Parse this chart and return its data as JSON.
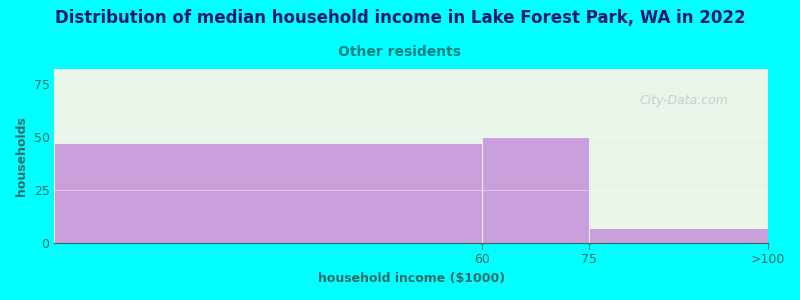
{
  "title": "Distribution of median household income in Lake Forest Park, WA in 2022",
  "subtitle": "Other residents",
  "xlabel": "household income ($1000)",
  "ylabel": "households",
  "bar_labels": [
    "60",
    "75",
    ">100"
  ],
  "bar_values": [
    47,
    50,
    7
  ],
  "bar_color": "#c9a0dc",
  "bar_edge_color": "#c9a0dc",
  "bg_color": "#00ffff",
  "plot_bg_color": "#eaf5ea",
  "title_color": "#1a1a6e",
  "subtitle_color": "#008080",
  "axis_label_color": "#2d6b6b",
  "tick_color": "#2d6b6b",
  "yticks": [
    0,
    25,
    50,
    75
  ],
  "ylim": [
    0,
    82
  ],
  "watermark": "City-Data.com",
  "watermark_color": "#b8ccc8",
  "title_fontsize": 12,
  "subtitle_fontsize": 10,
  "label_fontsize": 9,
  "tick_fontsize": 9
}
